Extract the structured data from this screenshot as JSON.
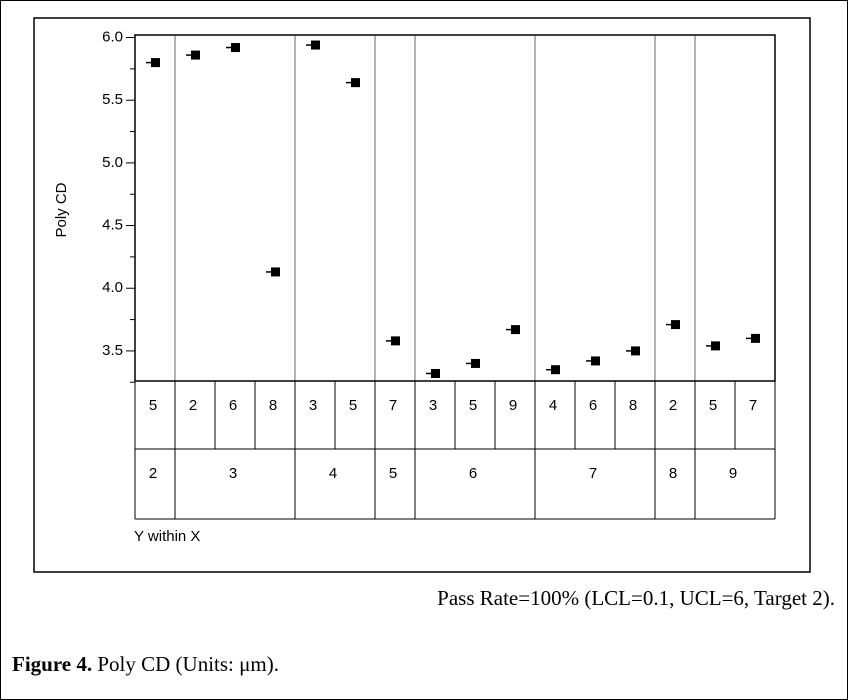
{
  "chart_data": {
    "type": "variability",
    "y_label": "Poly CD",
    "x_label": "Y within X",
    "categories": [
      "5",
      "2",
      "6",
      "8",
      "3",
      "5",
      "7",
      "3",
      "5",
      "9",
      "4",
      "6",
      "8",
      "2",
      "5",
      "7"
    ],
    "outer_categories": [
      "2",
      "3",
      "3",
      "3",
      "4",
      "4",
      "5",
      "6",
      "6",
      "6",
      "7",
      "7",
      "7",
      "8",
      "9",
      "9"
    ],
    "values": [
      5.8,
      5.86,
      5.92,
      4.13,
      5.94,
      5.64,
      3.58,
      3.32,
      3.4,
      3.67,
      3.35,
      3.42,
      3.5,
      3.71,
      3.54,
      3.6
    ],
    "color": "#000000",
    "ylim": [
      3.26,
      6.02
    ],
    "yticks": [
      3.5,
      {
        "value": 4,
        "label": "4.0"
      },
      4.5,
      {
        "value": 5,
        "label": "5.0"
      },
      5.5,
      {
        "value": 6,
        "label": "6.0"
      }
    ],
    "yminorticks": [
      3.25,
      3.75,
      4.25,
      4.75,
      5.25,
      5.75
    ],
    "note": "Pass Rate=100% (LCL=0.1, UCL=6, Target 2).",
    "caption": {
      "label": "Figure 4.",
      "text": "Poly CD (Units: μm)."
    }
  }
}
